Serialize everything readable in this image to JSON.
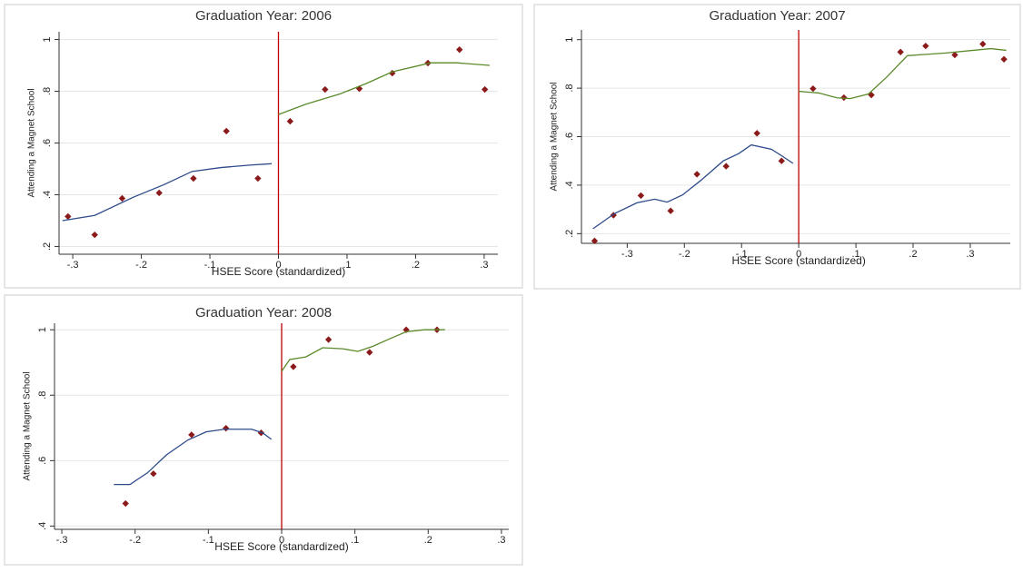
{
  "chart_data": [
    {
      "type": "scatter",
      "title": "Graduation Year: 2006",
      "x_label": "HSEE Score (standardized)",
      "y_label": "Attending a Magnet School",
      "xlim": [
        -0.32,
        0.32
      ],
      "ylim": [
        0.17,
        1.03
      ],
      "xticks": [
        {
          "value": -0.3,
          "label": "-.3"
        },
        {
          "value": -0.2,
          "label": "-.2"
        },
        {
          "value": -0.1,
          "label": "-.1"
        },
        0,
        {
          "value": 0.1,
          "label": ".1"
        },
        {
          "value": 0.2,
          "label": ".2"
        },
        {
          "value": 0.3,
          "label": ".3"
        }
      ],
      "yticks": [
        {
          "value": 0.2,
          "label": ".2"
        },
        {
          "value": 0.4,
          "label": ".4"
        },
        {
          "value": 0.6,
          "label": ".6"
        },
        {
          "value": 0.8,
          "label": ".8"
        },
        1
      ],
      "grid": true,
      "vline": 0,
      "vline_color": "#c00000",
      "series": [
        {
          "type": "scatter",
          "color": "#8b1a1a",
          "x": [
            -0.307,
            -0.268,
            -0.228,
            -0.174,
            -0.124,
            -0.076,
            -0.03,
            0.017,
            0.068,
            0.118,
            0.166,
            0.218,
            0.264,
            0.301
          ],
          "values": [
            0.316,
            0.245,
            0.386,
            0.407,
            0.463,
            0.646,
            0.463,
            0.684,
            0.807,
            0.81,
            0.87,
            0.909,
            0.961,
            0.807
          ]
        },
        {
          "type": "line",
          "color": "#2d4a8a",
          "x": [
            -0.315,
            -0.268,
            -0.212,
            -0.166,
            -0.126,
            -0.084,
            -0.04,
            -0.01
          ],
          "values": [
            0.3,
            0.32,
            0.39,
            0.44,
            0.49,
            0.505,
            0.515,
            0.52
          ]
        },
        {
          "type": "line",
          "color": "#5a8a2a",
          "x": [
            0,
            0.04,
            0.09,
            0.128,
            0.166,
            0.222,
            0.26,
            0.308
          ],
          "values": [
            0.71,
            0.75,
            0.79,
            0.83,
            0.875,
            0.91,
            0.91,
            0.9
          ]
        }
      ]
    },
    {
      "type": "scatter",
      "title": "Graduation Year: 2007",
      "x_label": "HSEE Score (standardized)",
      "y_label": "Attending a Magnet School",
      "xlim": [
        -0.38,
        0.37
      ],
      "ylim": [
        0.16,
        1.04
      ],
      "xticks": [
        {
          "value": -0.3,
          "label": "-.3"
        },
        {
          "value": -0.2,
          "label": "-.2"
        },
        {
          "value": -0.1,
          "label": "-.1"
        },
        0,
        {
          "value": 0.1,
          "label": ".1"
        },
        {
          "value": 0.2,
          "label": ".2"
        },
        {
          "value": 0.3,
          "label": ".3"
        }
      ],
      "yticks": [
        {
          "value": 0.2,
          "label": ".2"
        },
        {
          "value": 0.4,
          "label": ".4"
        },
        {
          "value": 0.6,
          "label": ".6"
        },
        {
          "value": 0.8,
          "label": ".8"
        },
        1
      ],
      "grid": true,
      "vline": 0,
      "vline_color": "#c00000",
      "series": [
        {
          "type": "scatter",
          "color": "#8b1a1a",
          "x": [
            -0.357,
            -0.324,
            -0.276,
            -0.224,
            -0.178,
            -0.127,
            -0.073,
            -0.03,
            0.025,
            0.079,
            0.127,
            0.178,
            0.222,
            0.273,
            0.322,
            0.359
          ],
          "values": [
            0.17,
            0.276,
            0.357,
            0.294,
            0.445,
            0.478,
            0.614,
            0.5,
            0.798,
            0.761,
            0.772,
            0.949,
            0.974,
            0.937,
            0.982,
            0.919
          ]
        },
        {
          "type": "line",
          "color": "#2d4a8a",
          "x": [
            -0.36,
            -0.322,
            -0.283,
            -0.252,
            -0.23,
            -0.203,
            -0.171,
            -0.132,
            -0.105,
            -0.083,
            -0.048,
            -0.029,
            -0.01
          ],
          "values": [
            0.22,
            0.283,
            0.327,
            0.342,
            0.33,
            0.36,
            0.42,
            0.5,
            0.53,
            0.566,
            0.548,
            0.52,
            0.49
          ]
        },
        {
          "type": "line",
          "color": "#5a8a2a",
          "x": [
            0,
            0.035,
            0.067,
            0.09,
            0.122,
            0.154,
            0.19,
            0.257,
            0.305,
            0.336,
            0.363
          ],
          "values": [
            0.787,
            0.78,
            0.76,
            0.757,
            0.776,
            0.846,
            0.934,
            0.945,
            0.956,
            0.963,
            0.956
          ]
        }
      ]
    },
    {
      "type": "scatter",
      "title": "Graduation Year: 2008",
      "x_label": "HSEE Score (standardized)",
      "y_label": "Attending a Magnet School",
      "xlim": [
        -0.31,
        0.31
      ],
      "ylim": [
        0.39,
        1.02
      ],
      "xticks": [
        {
          "value": -0.3,
          "label": "-.3"
        },
        {
          "value": -0.2,
          "label": "-.2"
        },
        {
          "value": -0.1,
          "label": "-.1"
        },
        0,
        {
          "value": 0.1,
          "label": ".1"
        },
        {
          "value": 0.2,
          "label": ".2"
        },
        {
          "value": 0.3,
          "label": ".3"
        }
      ],
      "yticks": [
        {
          "value": 0.4,
          "label": ".4"
        },
        {
          "value": 0.6,
          "label": ".6"
        },
        {
          "value": 0.8,
          "label": ".8"
        },
        1
      ],
      "grid": true,
      "vline": 0,
      "vline_color": "#c00000",
      "series": [
        {
          "type": "scatter",
          "color": "#8b1a1a",
          "x": [
            -0.213,
            -0.175,
            -0.123,
            -0.076,
            -0.028,
            0.016,
            0.064,
            0.12,
            0.17,
            0.212
          ],
          "values": [
            0.469,
            0.56,
            0.679,
            0.699,
            0.685,
            0.887,
            0.97,
            0.931,
            1.0,
            1.0
          ]
        },
        {
          "type": "line",
          "color": "#2d4a8a",
          "x": [
            -0.229,
            -0.207,
            -0.183,
            -0.157,
            -0.128,
            -0.103,
            -0.078,
            -0.041,
            -0.026,
            -0.014
          ],
          "values": [
            0.527,
            0.527,
            0.563,
            0.618,
            0.663,
            0.688,
            0.696,
            0.696,
            0.685,
            0.665
          ]
        },
        {
          "type": "line",
          "color": "#5a8a2a",
          "x": [
            0,
            0.011,
            0.033,
            0.056,
            0.083,
            0.104,
            0.125,
            0.147,
            0.17,
            0.195,
            0.223
          ],
          "values": [
            0.873,
            0.909,
            0.917,
            0.945,
            0.942,
            0.934,
            0.95,
            0.972,
            0.994,
            1.0,
            1.0
          ]
        }
      ]
    }
  ]
}
